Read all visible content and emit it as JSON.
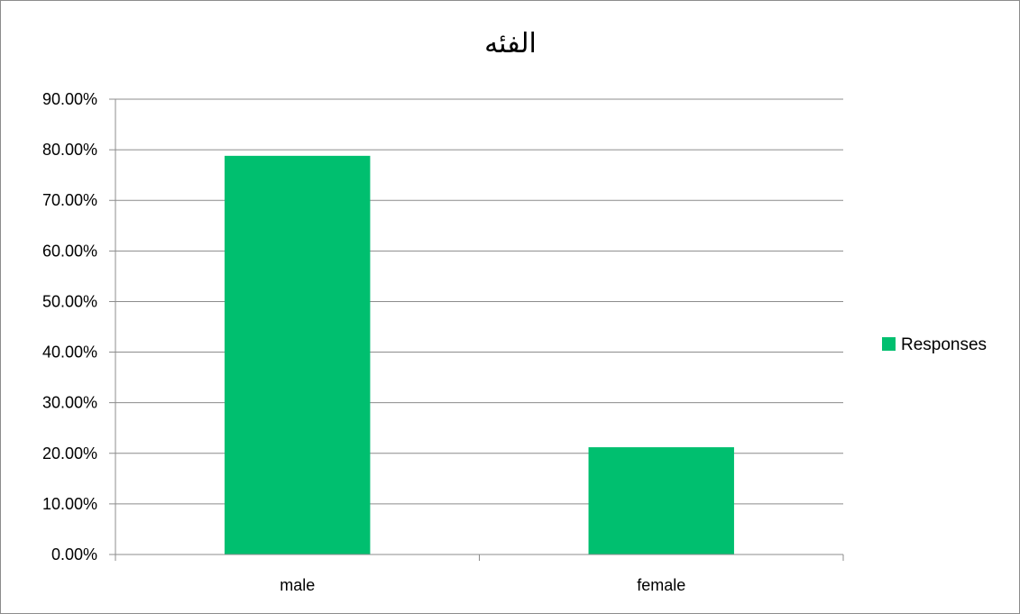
{
  "chart_data": {
    "type": "bar",
    "title": "الفئه",
    "categories": [
      "male",
      "female"
    ],
    "series": [
      {
        "name": "Responses",
        "values": [
          78.8,
          21.2
        ],
        "color": "#00bf6f"
      }
    ],
    "yticks": [
      "0.00%",
      "10.00%",
      "20.00%",
      "30.00%",
      "40.00%",
      "50.00%",
      "60.00%",
      "70.00%",
      "80.00%",
      "90.00%"
    ],
    "ylim": [
      0,
      90
    ],
    "ystep": 10,
    "grid": true,
    "grid_color": "#8c8c8c",
    "legend_position": "right"
  }
}
